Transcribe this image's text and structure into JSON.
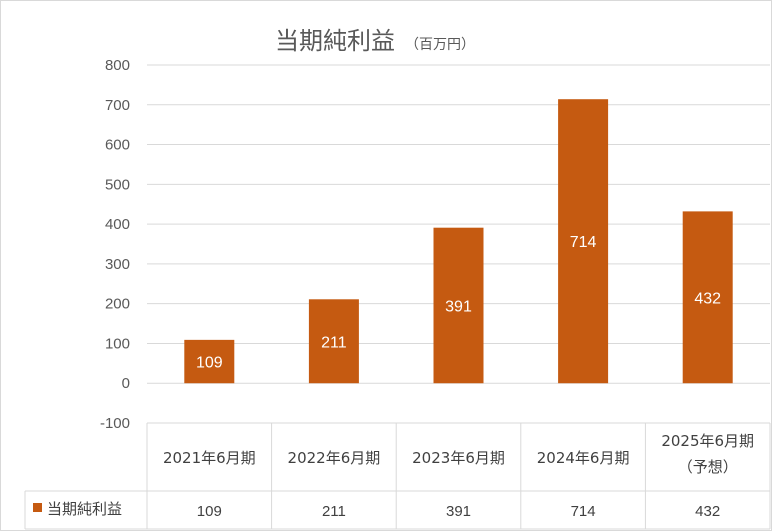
{
  "chart_data": {
    "type": "bar",
    "title": "当期純利益",
    "title_unit": "（百万円）",
    "categories": [
      "2021年6月期",
      "2022年6月期",
      "2023年6月期",
      "2024年6月期",
      "2025年6月期"
    ],
    "category_notes": [
      "",
      "",
      "",
      "",
      "（予想）"
    ],
    "series": [
      {
        "name": "当期純利益",
        "values": [
          109,
          211,
          391,
          714,
          432
        ]
      }
    ],
    "ylim": [
      -100,
      800
    ],
    "yticks": [
      800,
      700,
      600,
      500,
      400,
      300,
      200,
      100,
      0,
      -100
    ],
    "grid": true,
    "legend": "data-table",
    "data_table": true,
    "colors": {
      "bar": "#c55a11",
      "negative_tick": "#c00000",
      "grid": "#d9d9d9",
      "text": "#595959"
    }
  }
}
